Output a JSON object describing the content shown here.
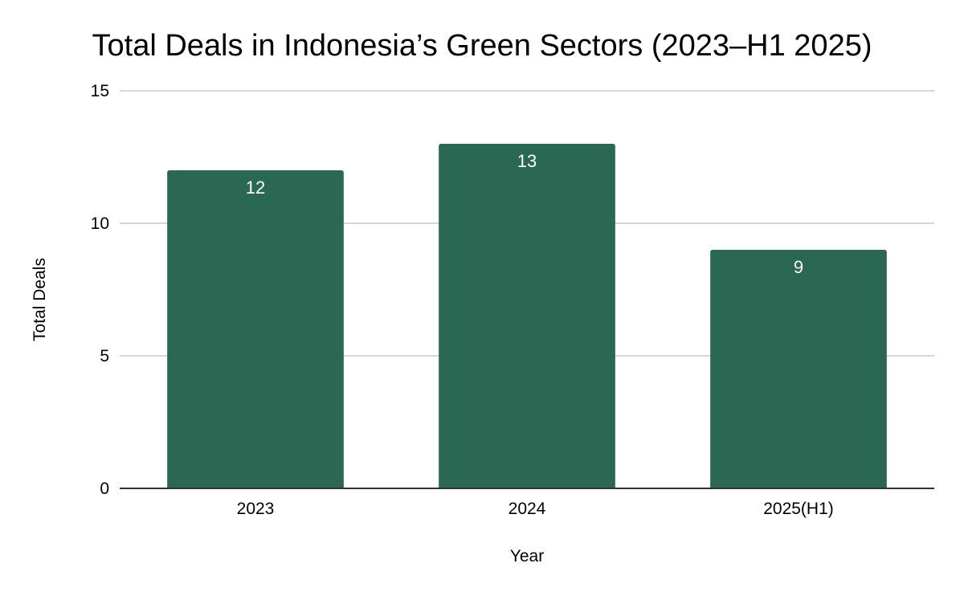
{
  "chart_data": {
    "type": "bar",
    "title": "Total Deals in Indonesia’s Green Sectors (2023–H1 2025)",
    "xlabel": "Year",
    "ylabel": "Total Deals",
    "categories": [
      "2023",
      "2024",
      "2025(H1)"
    ],
    "values": [
      12,
      13,
      9
    ],
    "data_labels": [
      "12",
      "13",
      "9"
    ],
    "ylim": [
      0,
      15
    ],
    "yticks": [
      0,
      5,
      10,
      15
    ],
    "ytick_labels": [
      "0",
      "5",
      "10",
      "15"
    ],
    "grid": true,
    "legend": "none",
    "bar_color": "#2b6854",
    "grid_color": "#c8c8c8",
    "axis_color": "#333333"
  }
}
